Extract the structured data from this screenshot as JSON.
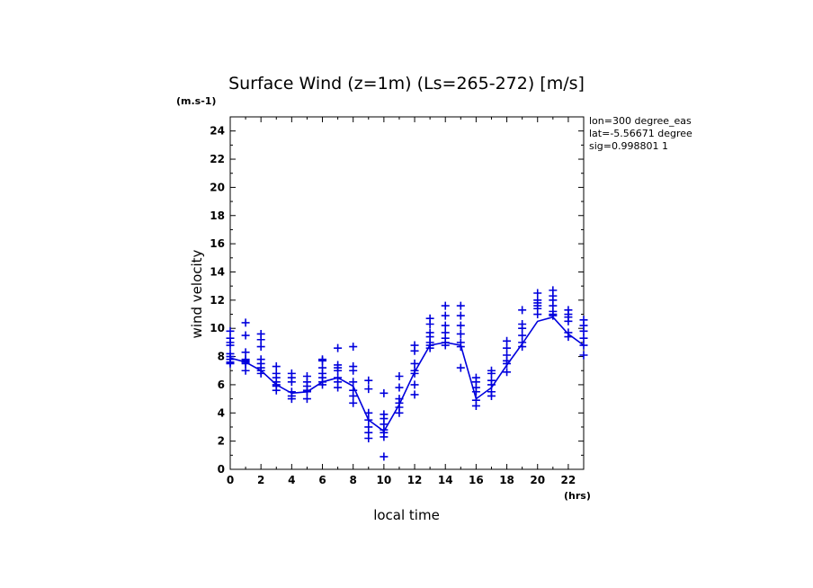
{
  "chart_data": {
    "type": "scatter",
    "title": "Surface Wind (z=1m) (Ls=265-272) [m/s]",
    "xlabel": "local time",
    "ylabel": "wind velocity",
    "x_unit": "(hrs)",
    "y_unit": "(m.s-1)",
    "xlim": [
      0,
      23
    ],
    "ylim": [
      0,
      25
    ],
    "xticks": [
      0,
      2,
      4,
      6,
      8,
      10,
      12,
      14,
      16,
      18,
      20,
      22
    ],
    "yticks": [
      0,
      2,
      4,
      6,
      8,
      10,
      12,
      14,
      16,
      18,
      20,
      22,
      24
    ],
    "grid": false,
    "legend": "none",
    "series_color": "#0000dd",
    "annotations": [
      "lon=300 degree_eas",
      "lat=-5.56671 degree",
      "sig=0.998801 1"
    ],
    "mean_line": {
      "x": [
        0,
        1,
        2,
        3,
        4,
        5,
        6,
        7,
        8,
        9,
        10,
        11,
        12,
        13,
        14,
        15,
        16,
        17,
        18,
        19,
        20,
        21,
        22,
        23
      ],
      "y": [
        7.9,
        7.6,
        7.0,
        6.0,
        5.4,
        5.5,
        6.2,
        6.5,
        5.9,
        3.5,
        2.7,
        4.6,
        6.9,
        8.8,
        9.0,
        8.8,
        5.0,
        5.8,
        7.4,
        8.9,
        10.5,
        10.8,
        9.6,
        8.8
      ]
    },
    "points": {
      "x": [
        0,
        0,
        0,
        0,
        0,
        0,
        0,
        0,
        0,
        1,
        1,
        1,
        1,
        1,
        1,
        1,
        1,
        2,
        2,
        2,
        2,
        2,
        2,
        2,
        2,
        3,
        3,
        3,
        3,
        3,
        3,
        3,
        4,
        4,
        4,
        4,
        4,
        4,
        5,
        5,
        5,
        5,
        5,
        5,
        6,
        6,
        6,
        6,
        6,
        6,
        6,
        7,
        7,
        7,
        7,
        7,
        7,
        7,
        8,
        8,
        8,
        8,
        8,
        8,
        8,
        9,
        9,
        9,
        9,
        9,
        9,
        9,
        10,
        10,
        10,
        10,
        10,
        10,
        10,
        10,
        11,
        11,
        11,
        11,
        11,
        11,
        12,
        12,
        12,
        12,
        12,
        12,
        12,
        13,
        13,
        13,
        13,
        13,
        13,
        13,
        14,
        14,
        14,
        14,
        14,
        14,
        14,
        15,
        15,
        15,
        15,
        15,
        15,
        15,
        16,
        16,
        16,
        16,
        16,
        16,
        17,
        17,
        17,
        17,
        17,
        17,
        18,
        18,
        18,
        18,
        18,
        18,
        19,
        19,
        19,
        19,
        19,
        19,
        20,
        20,
        20,
        20,
        20,
        20,
        21,
        21,
        21,
        21,
        21,
        21,
        21,
        22,
        22,
        22,
        22,
        22,
        22,
        23,
        23,
        23,
        23,
        23,
        23
      ],
      "y": [
        9.8,
        9.0,
        8.8,
        8.2,
        7.8,
        7.5,
        7.6,
        8.0,
        9.3,
        10.4,
        9.5,
        8.3,
        7.8,
        7.5,
        7.0,
        7.6,
        7.7,
        9.6,
        9.2,
        8.7,
        7.8,
        7.5,
        7.0,
        6.8,
        7.2,
        7.3,
        6.8,
        6.5,
        6.2,
        5.9,
        5.6,
        6.0,
        6.8,
        6.5,
        6.2,
        5.5,
        5.2,
        5.0,
        6.6,
        6.2,
        5.9,
        5.5,
        5.0,
        5.6,
        7.8,
        7.7,
        7.2,
        6.8,
        6.5,
        6.2,
        6.0,
        8.6,
        7.4,
        7.2,
        7.0,
        6.5,
        6.2,
        5.8,
        8.7,
        7.3,
        7.0,
        6.2,
        5.6,
        5.2,
        4.7,
        6.3,
        5.7,
        4.0,
        3.5,
        3.0,
        2.6,
        2.2,
        5.4,
        3.9,
        3.6,
        3.2,
        2.8,
        2.6,
        2.3,
        0.9,
        6.6,
        5.8,
        5.0,
        4.7,
        4.4,
        4.0,
        8.8,
        8.4,
        7.5,
        7.0,
        6.8,
        6.0,
        5.3,
        10.7,
        10.3,
        9.7,
        9.4,
        9.0,
        8.8,
        8.6,
        11.6,
        10.9,
        10.2,
        9.7,
        9.3,
        9.0,
        8.8,
        11.6,
        10.9,
        10.2,
        9.6,
        9.0,
        8.7,
        7.2,
        6.5,
        6.2,
        5.8,
        5.5,
        4.9,
        4.5,
        7.0,
        6.8,
        6.3,
        6.0,
        5.5,
        5.2,
        9.1,
        8.6,
        8.1,
        7.7,
        7.5,
        6.9,
        11.3,
        10.3,
        10.0,
        9.5,
        9.0,
        8.7,
        12.5,
        12.0,
        11.8,
        11.6,
        11.4,
        11.0,
        12.7,
        12.3,
        12.0,
        11.6,
        11.2,
        11.0,
        10.9,
        11.3,
        11.0,
        10.8,
        10.5,
        9.7,
        9.4,
        10.6,
        10.2,
        9.8,
        9.3,
        8.8,
        8.1
      ]
    }
  }
}
